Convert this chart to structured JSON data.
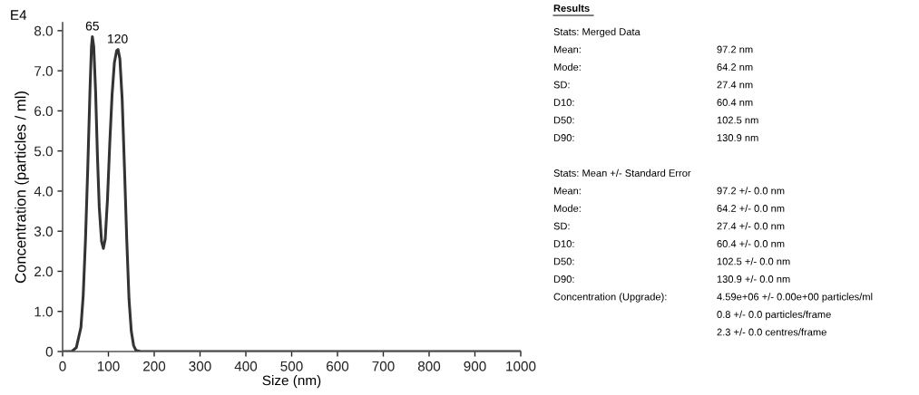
{
  "chart_data": [
    {
      "type": "line",
      "xlabel": "Size (nm)",
      "ylabel": "Concentration (particles / ml)",
      "x": [
        0,
        20,
        30,
        40,
        45,
        50,
        55,
        60,
        63,
        65,
        68,
        72,
        76,
        80,
        85,
        89,
        93,
        98,
        103,
        108,
        113,
        118,
        121,
        125,
        130,
        135,
        140,
        145,
        150,
        155,
        160,
        170,
        1000
      ],
      "series": [
        {
          "color": "#333333",
          "values": [
            0,
            0,
            0.1,
            0.6,
            1.4,
            2.8,
            4.6,
            6.6,
            7.6,
            7.85,
            7.6,
            6.5,
            4.9,
            3.6,
            2.75,
            2.57,
            2.8,
            3.8,
            5.2,
            6.4,
            7.2,
            7.5,
            7.53,
            7.3,
            6.3,
            4.6,
            2.8,
            1.3,
            0.5,
            0.15,
            0.03,
            0,
            0
          ]
        }
      ],
      "xlim": [
        0,
        1000
      ],
      "xticks": [
        0,
        100,
        200,
        300,
        400,
        500,
        600,
        700,
        800,
        900,
        1000
      ],
      "ylim": [
        0,
        8.2
      ],
      "yticks": [
        0,
        {
          "value": 1,
          "label": "1.0"
        },
        {
          "value": 2,
          "label": "2.0"
        },
        {
          "value": 3,
          "label": "3.0"
        },
        {
          "value": 4,
          "label": "4.0"
        },
        {
          "value": 5,
          "label": "5.0"
        },
        {
          "value": 6,
          "label": "6.0"
        },
        {
          "value": 7,
          "label": "7.0"
        },
        {
          "value": 8,
          "label": "8.0"
        }
      ],
      "grid": false,
      "legend": false,
      "marker": "none",
      "line_style": "solid",
      "annotations": [
        "E4",
        {
          "text": "65",
          "x": 65,
          "y": 7.85
        },
        {
          "text": "120",
          "x": 120,
          "y": 7.53
        }
      ]
    },
    {
      "type": "other",
      "title": "Results",
      "annotations": [
        "Stats: Merged Data",
        "Mean:\t97.2 nm",
        "Mode:\t64.2 nm",
        "SD:\t27.4 nm",
        "D10:\t60.4 nm",
        "D50:\t102.5 nm",
        "D90:\t130.9 nm",
        "Stats: Mean +/- Standard Error",
        "Mean:\t97.2 +/- 0.0 nm",
        "Mode:\t64.2 +/- 0.0 nm",
        "SD:\t27.4 +/- 0.0 nm",
        "D10:\t60.4 +/- 0.0 nm",
        "D50:\t102.5 +/- 0.0 nm",
        "D90:\t130.9 +/- 0.0 nm",
        "Concentration (Upgrade):\t4.59e+06 +/- 0.00e+00 particles/ml",
        "\t0.8 +/- 0.0 particles/frame",
        "\t2.3 +/- 0.0 centres/frame"
      ]
    }
  ]
}
